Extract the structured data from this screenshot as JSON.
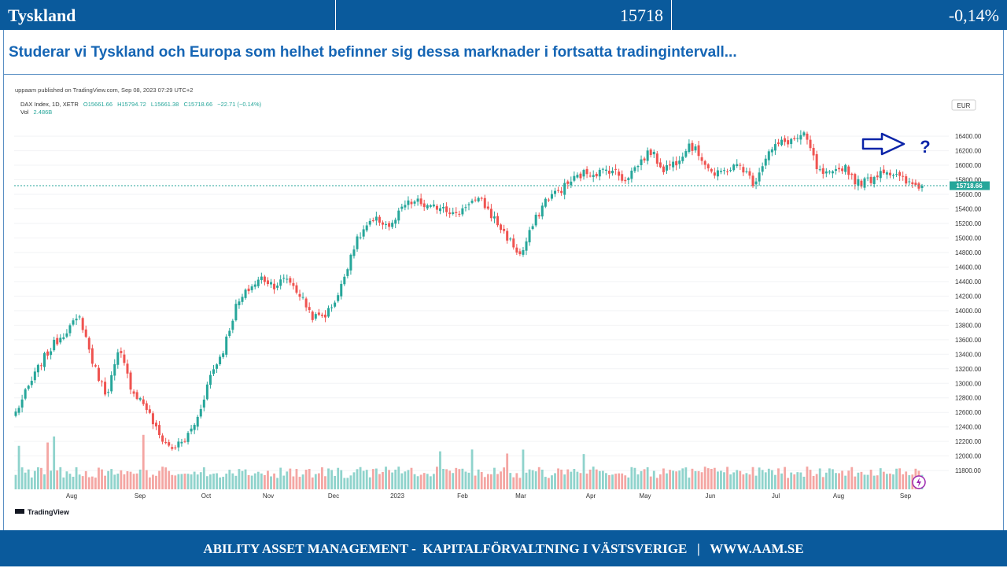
{
  "header": {
    "market": "Tyskland",
    "value": "15718",
    "change": "-0,14%"
  },
  "subtitle": "Studerar vi Tyskland och Europa som helhet befinner sig dessa marknader i fortsatta tradingintervall...",
  "footer": "ABILITY ASSET MANAGEMENT -  KAPITALFÖRVALTNING I VÄSTSVERIGE   |   WWW.AAM.SE",
  "colors": {
    "brand": "#0a5a9c",
    "up": "#26a69a",
    "down": "#ef5350",
    "up_volume": "#8fd3cc",
    "down_volume": "#f4a6a3",
    "annotation": "#0b24a8"
  },
  "chart_data": {
    "type": "candlestick",
    "published": "uppaam published on TradingView.com, Sep 08, 2023 07:29 UTC+2",
    "symbol_line": "DAX Index, 1D, XETR",
    "ohlc": {
      "O": "O15661.66",
      "H": "H15794.72",
      "L": "L15661.38",
      "C": "C15718.66",
      "change": "−22.71 (−0.14%)"
    },
    "volume_label": "Vol",
    "volume_value": "2.486B",
    "currency": "EUR",
    "last_price": "15718.66",
    "last_price_value": 15718.66,
    "ylim": [
      11650,
      16650
    ],
    "y_ticks": [
      11800,
      12000,
      12200,
      12400,
      12600,
      12800,
      13000,
      13200,
      13400,
      13600,
      13800,
      14000,
      14200,
      14400,
      14600,
      14800,
      15000,
      15200,
      15400,
      15600,
      15800,
      16000,
      16200,
      16400
    ],
    "y_tick_labels": [
      "11800.00",
      "12000.00",
      "12200.00",
      "12400.00",
      "12600.00",
      "12800.00",
      "13000.00",
      "13200.00",
      "13400.00",
      "13600.00",
      "13800.00",
      "14000.00",
      "14200.00",
      "14400.00",
      "14600.00",
      "14800.00",
      "15000.00",
      "15200.00",
      "15400.00",
      "15600.00",
      "15800.00",
      "16000.00",
      "16200.00",
      "16400.00"
    ],
    "x_labels": [
      "Aug",
      "Sep",
      "Oct",
      "Nov",
      "Dec",
      "2023",
      "Feb",
      "Mar",
      "Apr",
      "May",
      "Jun",
      "Jul",
      "Aug",
      "Sep"
    ],
    "series": [
      {
        "name": "DAX Index",
        "closes": [
          12600,
          12950,
          13300,
          13550,
          13750,
          13900,
          13250,
          12850,
          13450,
          12900,
          12700,
          12300,
          12100,
          12200,
          12500,
          13100,
          13450,
          14050,
          14300,
          14450,
          14350,
          14450,
          14200,
          13900,
          13950,
          14250,
          14850,
          15150,
          15250,
          15150,
          15450,
          15500,
          15400,
          15450,
          15300,
          15500,
          15500,
          15250,
          15000,
          14750,
          15200,
          15550,
          15650,
          15800,
          15900,
          15900,
          15950,
          15800,
          16000,
          16200,
          15950,
          16050,
          16300,
          16100,
          15850,
          15950,
          16000,
          15750,
          16150,
          16300,
          16350,
          16400,
          15900,
          15850,
          16000,
          15750,
          15800,
          15950,
          15850,
          15740,
          15718
        ]
      }
    ],
    "volume_ylim": [
      0,
      18
    ],
    "annotations": [
      "arrow-right",
      "?"
    ],
    "watermark": "TradingView"
  }
}
